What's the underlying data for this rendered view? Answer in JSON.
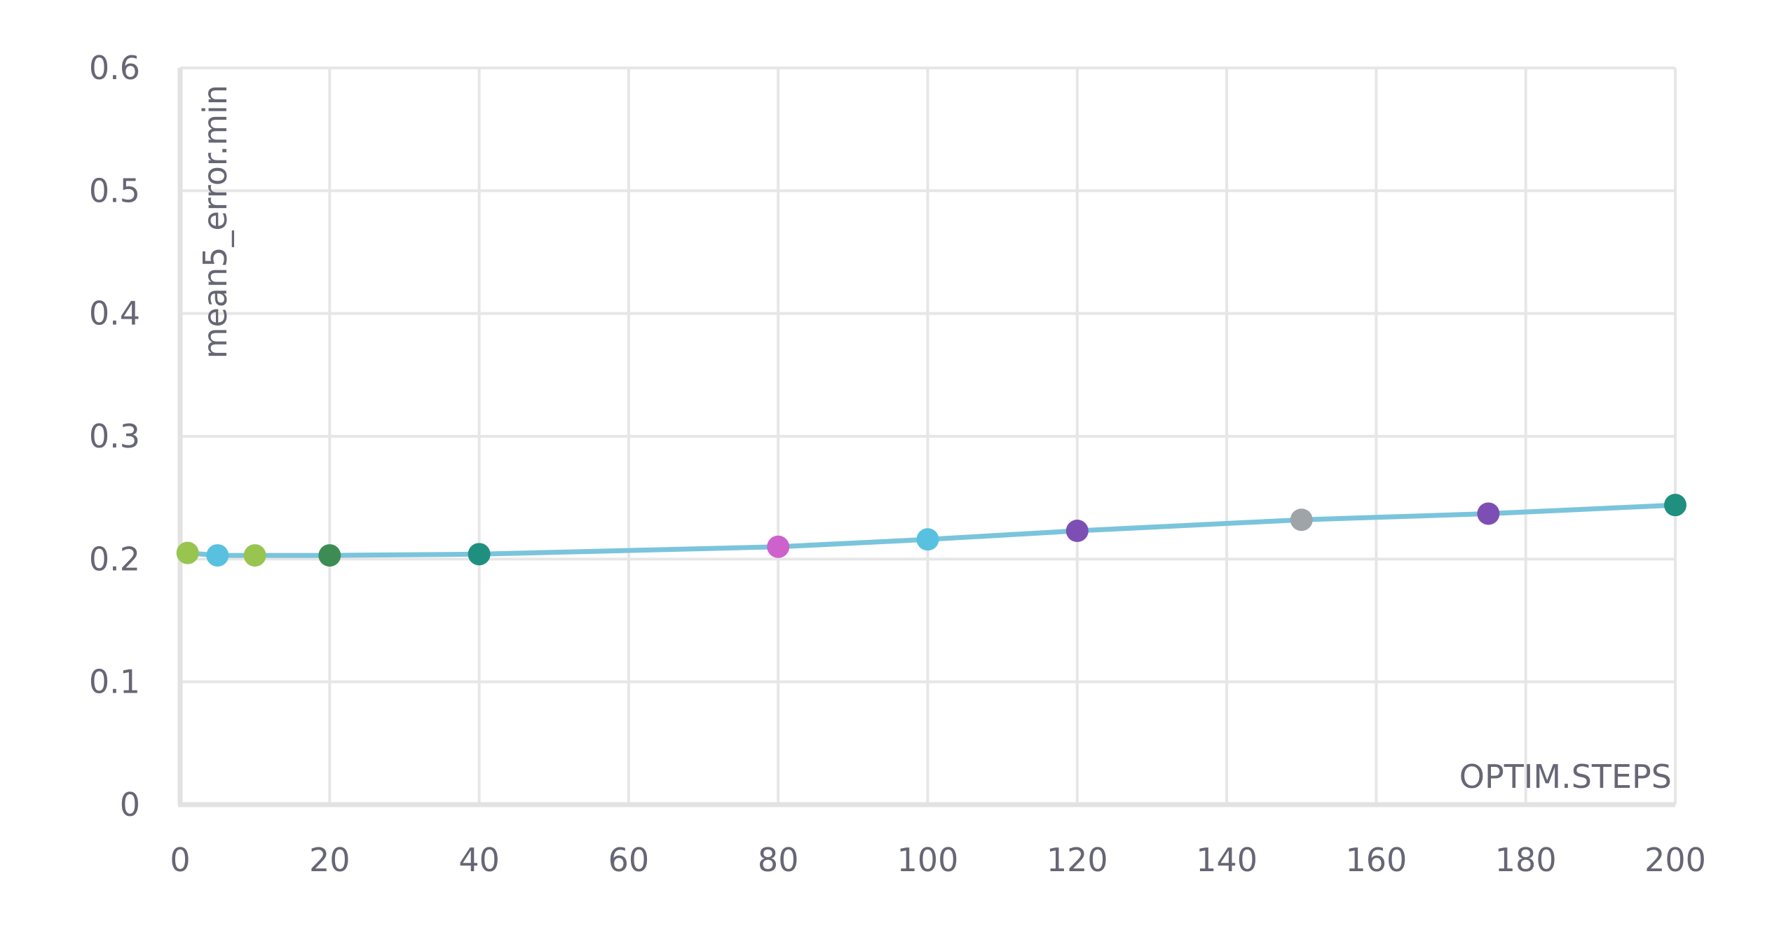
{
  "chart_data": {
    "type": "line",
    "title": "",
    "xlabel": "OPTIM.STEPS",
    "ylabel": "mean5_error.min",
    "xlim": [
      0,
      200
    ],
    "ylim": [
      0,
      0.6
    ],
    "x_ticks": [
      0,
      20,
      40,
      60,
      80,
      100,
      120,
      140,
      160,
      180,
      200
    ],
    "y_ticks": [
      0,
      0.1,
      0.2,
      0.3,
      0.4,
      0.5,
      0.6
    ],
    "grid": true,
    "line_color": "#7ac4dc",
    "series": [
      {
        "values": [
          {
            "x": 1,
            "y": 0.205,
            "color": "#98c450"
          },
          {
            "x": 5,
            "y": 0.203,
            "color": "#58c1df"
          },
          {
            "x": 10,
            "y": 0.203,
            "color": "#98c450"
          },
          {
            "x": 20,
            "y": 0.203,
            "color": "#3d8c54"
          },
          {
            "x": 40,
            "y": 0.204,
            "color": "#1f9080"
          },
          {
            "x": 80,
            "y": 0.21,
            "color": "#cd62cd"
          },
          {
            "x": 100,
            "y": 0.216,
            "color": "#58c1df"
          },
          {
            "x": 120,
            "y": 0.223,
            "color": "#7d4fb4"
          },
          {
            "x": 150,
            "y": 0.232,
            "color": "#9fa4a8"
          },
          {
            "x": 175,
            "y": 0.237,
            "color": "#7d4fb4"
          },
          {
            "x": 200,
            "y": 0.244,
            "color": "#1f9080"
          }
        ]
      }
    ]
  }
}
